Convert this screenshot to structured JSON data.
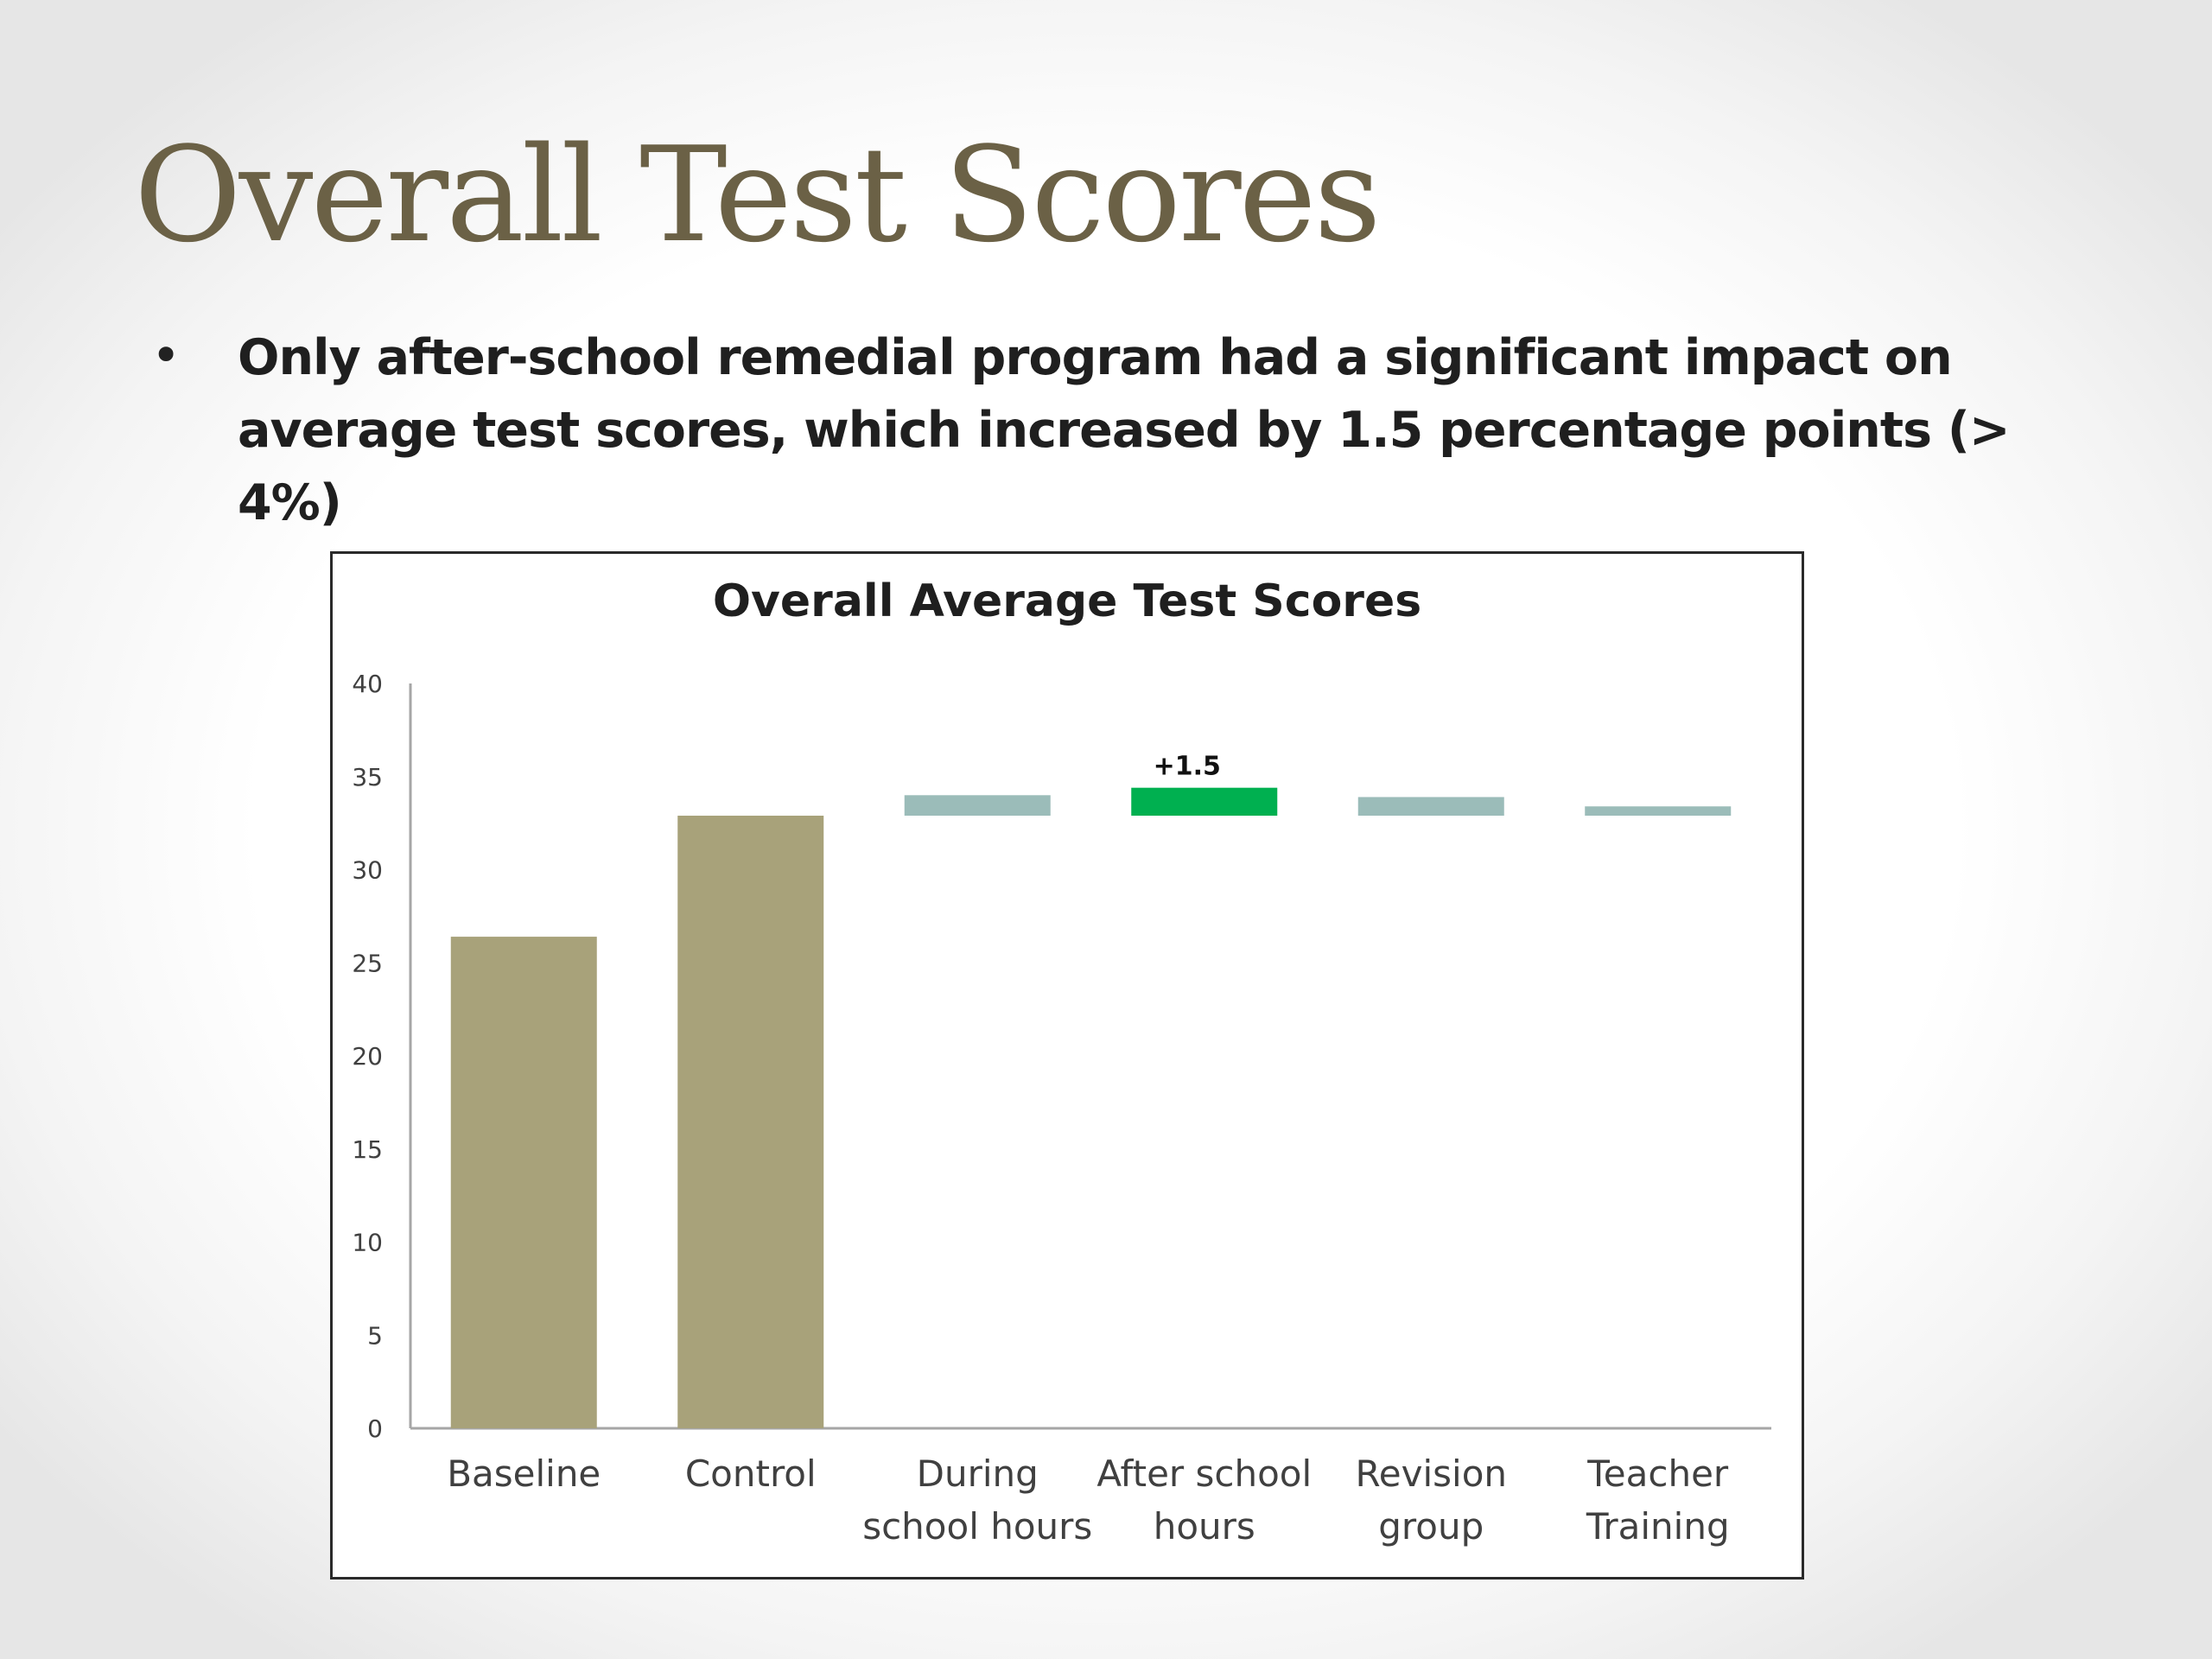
{
  "slide": {
    "title": "Overall Test Scores",
    "bullet_marker": "•",
    "bullet": "Only after-school remedial program had a significant impact on average test scores, which increased by 1.5 percentage points (> 4%)"
  },
  "colors": {
    "title": "#6b6146",
    "bar_base": "#a8a27a",
    "bar_effect": "#9bbcb9",
    "bar_significant": "#00b050",
    "axis": "#a6a6a6"
  },
  "chart_data": {
    "type": "bar",
    "title": "Overall Average Test Scores",
    "xlabel": "",
    "ylabel": "",
    "ylim": [
      0,
      40
    ],
    "yticks": [
      0,
      5,
      10,
      15,
      20,
      25,
      30,
      35,
      40
    ],
    "categories": [
      [
        "Baseline"
      ],
      [
        "Control"
      ],
      [
        "During",
        "school hours"
      ],
      [
        "After school",
        "hours"
      ],
      [
        "Revision",
        "group"
      ],
      [
        "Teacher",
        "Training"
      ]
    ],
    "bars": [
      {
        "category": "Baseline",
        "base": 0,
        "value": 26.4,
        "style": "base"
      },
      {
        "category": "Control",
        "base": 0,
        "value": 32.9,
        "style": "base"
      },
      {
        "category": "During school hours",
        "base": 32.9,
        "value": 34.0,
        "style": "effect"
      },
      {
        "category": "After school hours",
        "base": 32.9,
        "value": 34.4,
        "style": "significant",
        "label": "+1.5"
      },
      {
        "category": "Revision group",
        "base": 32.9,
        "value": 33.9,
        "style": "effect"
      },
      {
        "category": "Teacher Training",
        "base": 32.9,
        "value": 33.4,
        "style": "effect"
      }
    ],
    "grid": false,
    "legend": "none"
  }
}
